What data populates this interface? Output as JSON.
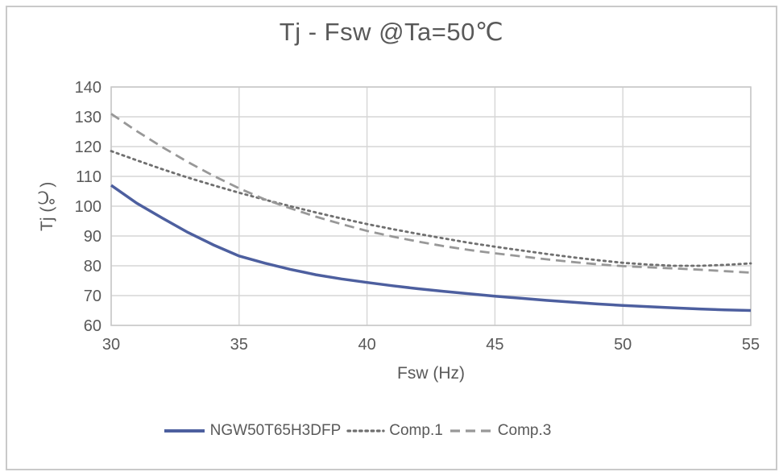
{
  "chart_data": {
    "type": "line",
    "title": "Tj - Fsw @Ta=50℃",
    "xlabel": "Fsw (Hz)",
    "ylabel": "Tj (℃)",
    "xlim": [
      30,
      55
    ],
    "ylim": [
      60,
      140
    ],
    "xticks": [
      30,
      35,
      40,
      45,
      50,
      55
    ],
    "yticks": [
      60,
      70,
      80,
      90,
      100,
      110,
      120,
      130,
      140
    ],
    "grid": true,
    "legend_position": "bottom",
    "x": [
      30,
      31,
      32,
      33,
      34,
      35,
      36,
      37,
      38,
      39,
      40,
      41,
      42,
      43,
      44,
      45,
      46,
      47,
      48,
      49,
      50,
      51,
      52,
      53,
      54,
      55
    ],
    "series": [
      {
        "name": "NGW50T65H3DFP",
        "style": "solid",
        "color": "#4d5f9f",
        "width": 3.5,
        "values": [
          107,
          101,
          96,
          91.2,
          87,
          83.3,
          80.9,
          78.8,
          77,
          75.6,
          74.4,
          73.3,
          72.3,
          71.4,
          70.6,
          69.8,
          69.1,
          68.4,
          67.8,
          67.2,
          66.7,
          66.3,
          65.9,
          65.5,
          65.2,
          65
        ]
      },
      {
        "name": "Comp.1",
        "style": "dotted",
        "color": "#6f6f6f",
        "width": 2.8,
        "values": [
          118.5,
          115.4,
          112.4,
          109.6,
          107,
          104.5,
          102.2,
          100,
          97.9,
          95.9,
          94,
          92.3,
          90.7,
          89.2,
          87.7,
          86.4,
          85.2,
          84,
          82.9,
          81.9,
          81,
          80.4,
          80,
          80,
          80.3,
          80.8
        ]
      },
      {
        "name": "Comp.3",
        "style": "dashed",
        "color": "#989898",
        "width": 2.8,
        "values": [
          131,
          125.2,
          119.8,
          114.8,
          110.2,
          106,
          102.3,
          99.3,
          96.5,
          94,
          91.7,
          89.8,
          88.1,
          86.6,
          85.3,
          84.2,
          83.2,
          82.2,
          81.3,
          80.5,
          79.9,
          79.5,
          79.1,
          78.7,
          78.2,
          77.7
        ]
      }
    ],
    "colors": {
      "grid": "#d6d6d6",
      "plot_border": "#c9c9c9",
      "axis_text": "#595959",
      "background": "#ffffff",
      "outer_border": "#c9c9c9"
    }
  }
}
